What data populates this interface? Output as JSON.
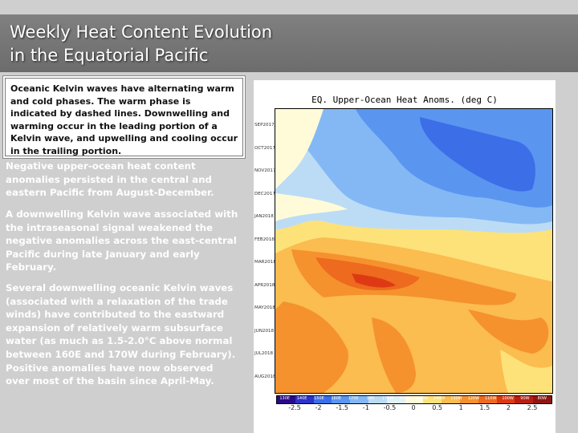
{
  "slide": {
    "title_line1": "Weekly Heat Content Evolution",
    "title_line2": "in the Equatorial Pacific",
    "intro": "Oceanic Kelvin waves have alternating warm and cold phases. The warm phase is indicated by dashed lines. Downwelling and warming occur in the leading portion of a Kelvin wave, and upwelling and cooling occur in the trailing portion.",
    "paragraphs": [
      "Negative upper-ocean heat content anomalies persisted in the central and eastern Pacific from August-December.",
      "A downwelling Kelvin wave associated with the intraseasonal signal weakened the negative anomalies across the east-central Pacific during late January and early February.",
      "Several downwelling oceanic Kelvin waves (associated with a relaxation of the trade winds) have contributed to the eastward expansion of relatively warm subsurface water (as much as 1.5-2.0°C above normal between 160E and 170W during February). Positive anomalies have now observed over most of the basin since April-May."
    ]
  },
  "figure": {
    "title": "EQ. Upper-Ocean Heat Anoms. (deg C)",
    "time_labels": [
      "SEP2017",
      "OCT2017",
      "NOV2017",
      "DEC2017",
      "JAN2018",
      "FEB2018",
      "MAR2018",
      "APR2018",
      "MAY2018",
      "JUN2018",
      "JUL2018",
      "AUG2018"
    ],
    "longitude_labels": [
      "130E",
      "140E",
      "150E",
      "160E",
      "170E",
      "180",
      "170W",
      "160W",
      "150W",
      "140W",
      "130W",
      "120W",
      "110W",
      "100W",
      "90W",
      "80W"
    ],
    "colorbar_values": [
      "-2.5",
      "-2",
      "-1.5",
      "-1",
      "-0.5",
      "0",
      "0.5",
      "1",
      "1.5",
      "2",
      "2.5"
    ],
    "colorbar_colors": [
      "#2a0a88",
      "#2c33c8",
      "#3c6ee8",
      "#5a96f0",
      "#84b8f5",
      "#bcdcf6",
      "#e2f1f5",
      "#fffbd8",
      "#fde27a",
      "#fbbc50",
      "#f5922d",
      "#ee6a1e",
      "#dd3a14",
      "#b81e12",
      "#8e1612"
    ]
  }
}
